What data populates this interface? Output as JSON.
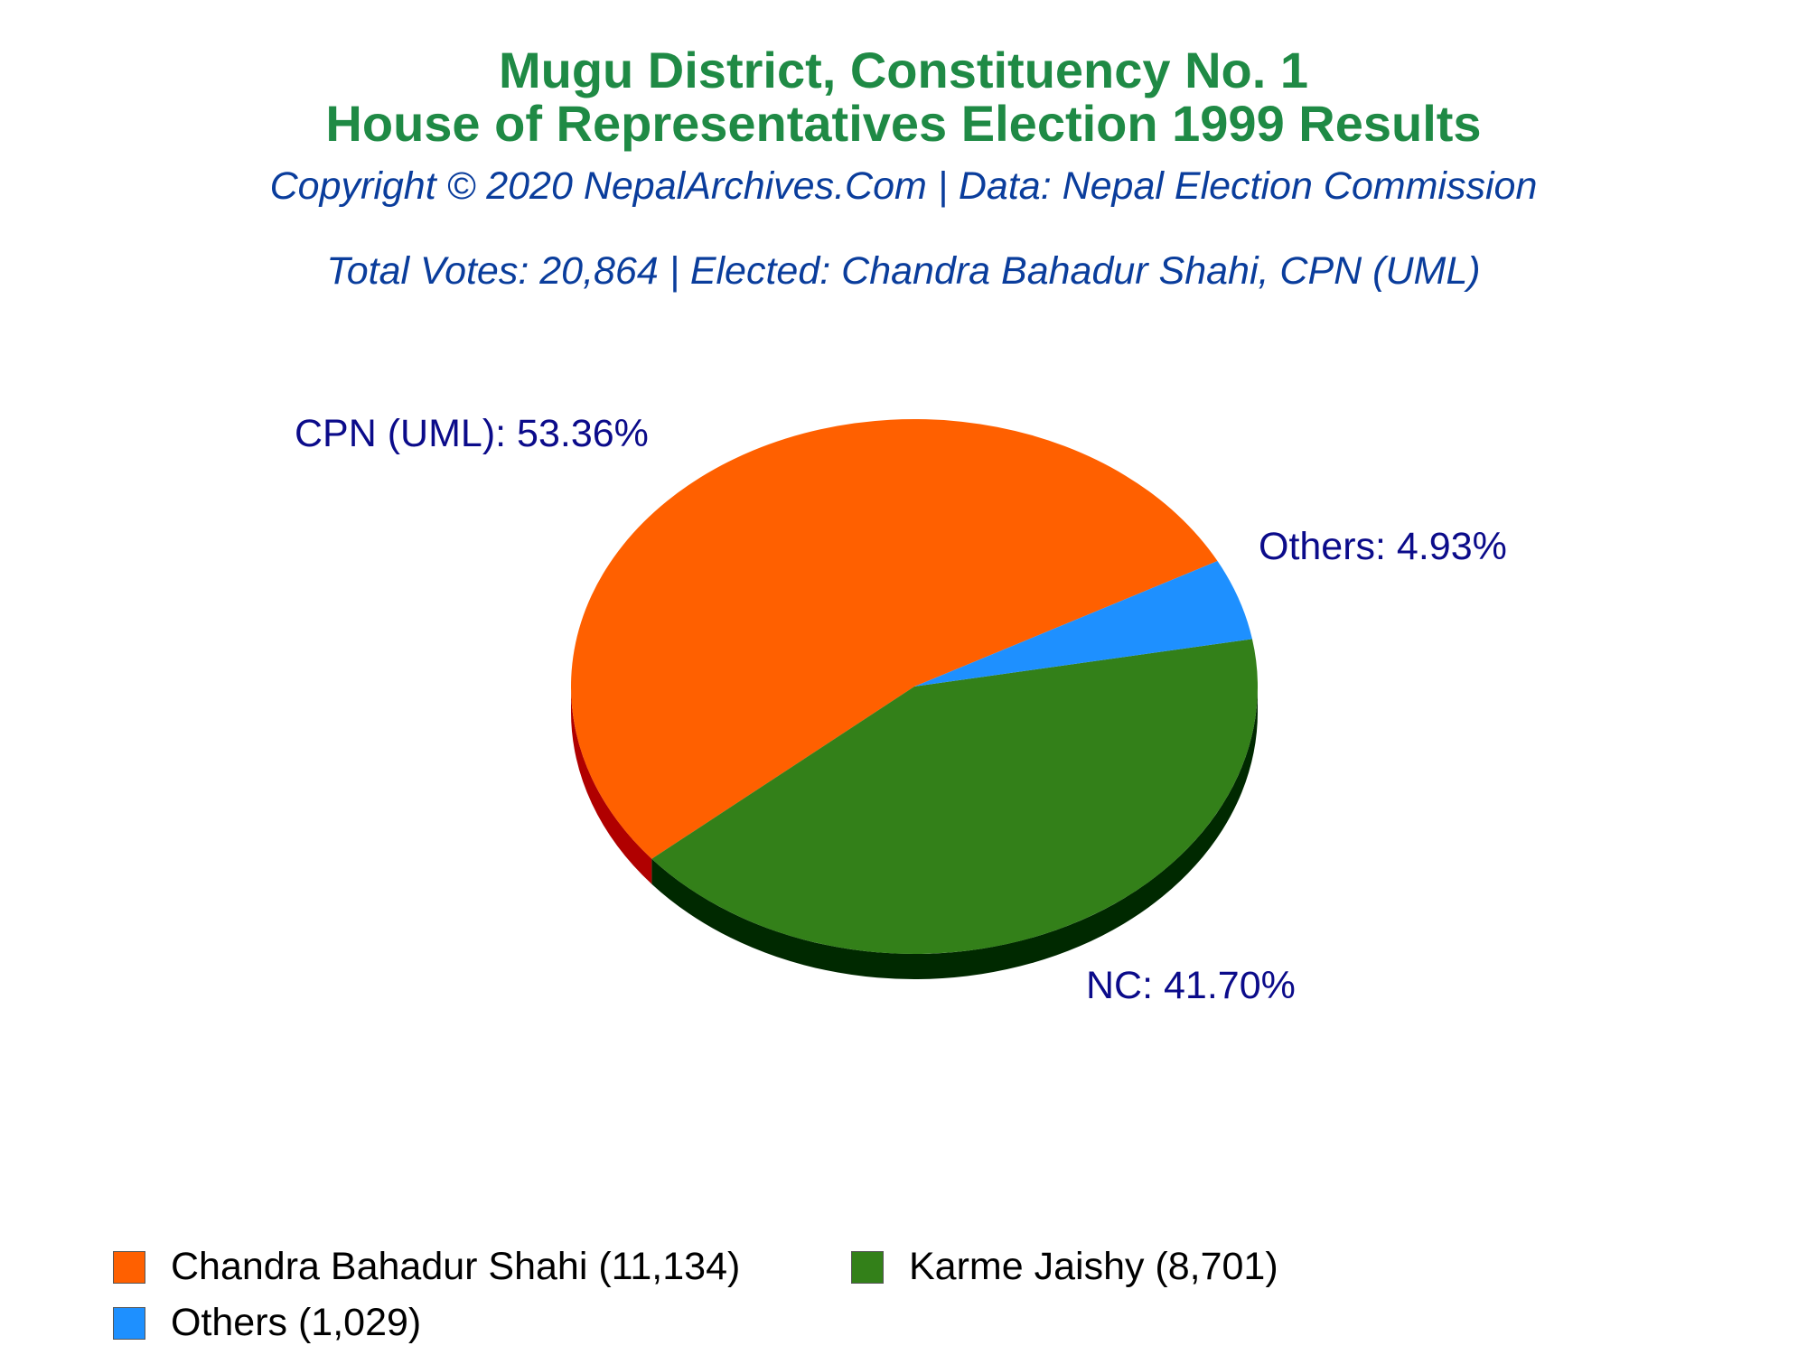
{
  "colors": {
    "title": "#1f8a45",
    "subtitle": "#0a3d9c",
    "slice_label": "#0b0b8a"
  },
  "header": {
    "title_line_1": "Mugu District, Constituency No. 1",
    "title_line_2": "House of Representatives Election 1999 Results",
    "copyright": "Copyright © 2020 NepalArchives.Com | Data: Nepal Election Commission",
    "summary": "Total Votes: 20,864 | Elected: Chandra Bahadur Shahi, CPN (UML)"
  },
  "chart_data": {
    "type": "pie",
    "style": "3d",
    "slices": [
      {
        "party": "CPN (UML)",
        "candidate": "Chandra Bahadur Shahi",
        "votes": 11134,
        "percent": 53.36,
        "label": "CPN (UML): 53.36%",
        "legend_label": "Chandra Bahadur Shahi (11,134)",
        "color": "#ff6000",
        "side_color": "#b00000"
      },
      {
        "party": "NC",
        "candidate": "Karme Jaishy",
        "votes": 8701,
        "percent": 41.7,
        "label": "NC: 41.70%",
        "legend_label": "Karme Jaishy (8,701)",
        "color": "#338019",
        "side_color": "#002900"
      },
      {
        "party": "Others",
        "candidate": "Others",
        "votes": 1029,
        "percent": 4.93,
        "label": "Others: 4.93%",
        "legend_label": "Others (1,029)",
        "color": "#1e90ff",
        "side_color": "#0b4f99"
      }
    ],
    "legend_position": "bottom-left"
  }
}
